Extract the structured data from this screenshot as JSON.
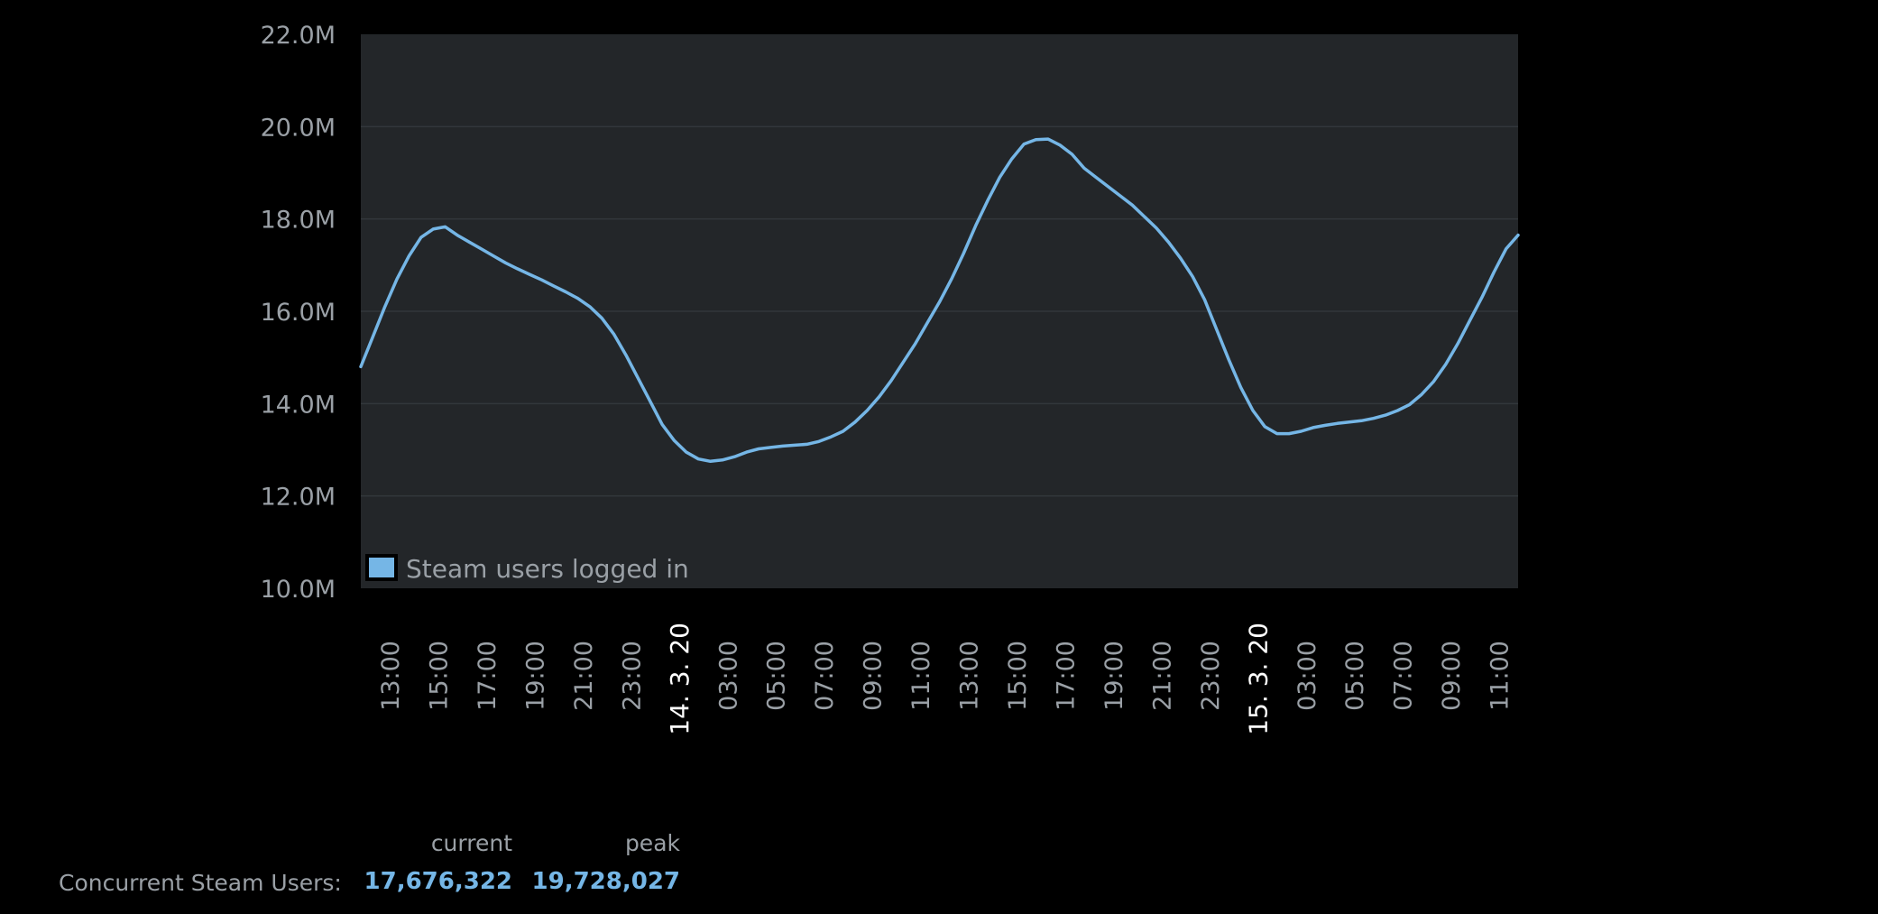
{
  "chart_data": {
    "type": "line",
    "title": "",
    "xlabel": "",
    "ylabel": "",
    "ylim": [
      10000000,
      22000000
    ],
    "y_ticks": [
      {
        "value": 22000000,
        "label": "22.0M"
      },
      {
        "value": 20000000,
        "label": "20.0M"
      },
      {
        "value": 18000000,
        "label": "18.0M"
      },
      {
        "value": 16000000,
        "label": "16.0M"
      },
      {
        "value": 14000000,
        "label": "14.0M"
      },
      {
        "value": 12000000,
        "label": "12.0M"
      },
      {
        "value": 10000000,
        "label": "10.0M"
      }
    ],
    "x_ticks": [
      {
        "hour": 13,
        "label": "13:00",
        "kind": "time"
      },
      {
        "hour": 15,
        "label": "15:00",
        "kind": "time"
      },
      {
        "hour": 17,
        "label": "17:00",
        "kind": "time"
      },
      {
        "hour": 19,
        "label": "19:00",
        "kind": "time"
      },
      {
        "hour": 21,
        "label": "21:00",
        "kind": "time"
      },
      {
        "hour": 23,
        "label": "23:00",
        "kind": "time"
      },
      {
        "hour": 25,
        "label": "14. 3. 20",
        "kind": "date"
      },
      {
        "hour": 27,
        "label": "03:00",
        "kind": "time"
      },
      {
        "hour": 29,
        "label": "05:00",
        "kind": "time"
      },
      {
        "hour": 31,
        "label": "07:00",
        "kind": "time"
      },
      {
        "hour": 33,
        "label": "09:00",
        "kind": "time"
      },
      {
        "hour": 35,
        "label": "11:00",
        "kind": "time"
      },
      {
        "hour": 37,
        "label": "13:00",
        "kind": "time"
      },
      {
        "hour": 39,
        "label": "15:00",
        "kind": "time"
      },
      {
        "hour": 41,
        "label": "17:00",
        "kind": "time"
      },
      {
        "hour": 43,
        "label": "19:00",
        "kind": "time"
      },
      {
        "hour": 45,
        "label": "21:00",
        "kind": "time"
      },
      {
        "hour": 47,
        "label": "23:00",
        "kind": "time"
      },
      {
        "hour": 49,
        "label": "15. 3. 20",
        "kind": "date"
      },
      {
        "hour": 51,
        "label": "03:00",
        "kind": "time"
      },
      {
        "hour": 53,
        "label": "05:00",
        "kind": "time"
      },
      {
        "hour": 55,
        "label": "07:00",
        "kind": "time"
      },
      {
        "hour": 57,
        "label": "09:00",
        "kind": "time"
      },
      {
        "hour": 59,
        "label": "11:00",
        "kind": "time"
      }
    ],
    "x_range": [
      11.8,
      59.8
    ],
    "grid": true,
    "legend_position": "bottom-left",
    "series": [
      {
        "name": "Steam users logged in",
        "color": "#75b6e6",
        "points": [
          [
            11.8,
            14.8
          ],
          [
            12.3,
            15.45
          ],
          [
            12.8,
            16.1
          ],
          [
            13.3,
            16.7
          ],
          [
            13.8,
            17.2
          ],
          [
            14.3,
            17.6
          ],
          [
            14.8,
            17.78
          ],
          [
            15.3,
            17.83
          ],
          [
            15.8,
            17.65
          ],
          [
            16.3,
            17.5
          ],
          [
            16.8,
            17.35
          ],
          [
            17.3,
            17.2
          ],
          [
            17.8,
            17.05
          ],
          [
            18.3,
            16.92
          ],
          [
            18.8,
            16.8
          ],
          [
            19.3,
            16.68
          ],
          [
            19.8,
            16.55
          ],
          [
            20.3,
            16.42
          ],
          [
            20.8,
            16.28
          ],
          [
            21.3,
            16.1
          ],
          [
            21.8,
            15.85
          ],
          [
            22.3,
            15.5
          ],
          [
            22.8,
            15.05
          ],
          [
            23.3,
            14.55
          ],
          [
            23.8,
            14.05
          ],
          [
            24.3,
            13.55
          ],
          [
            24.8,
            13.2
          ],
          [
            25.3,
            12.95
          ],
          [
            25.8,
            12.8
          ],
          [
            26.3,
            12.75
          ],
          [
            26.8,
            12.78
          ],
          [
            27.3,
            12.85
          ],
          [
            27.8,
            12.95
          ],
          [
            28.3,
            13.02
          ],
          [
            28.8,
            13.05
          ],
          [
            29.3,
            13.08
          ],
          [
            29.8,
            13.1
          ],
          [
            30.3,
            13.12
          ],
          [
            30.8,
            13.18
          ],
          [
            31.3,
            13.28
          ],
          [
            31.8,
            13.4
          ],
          [
            32.3,
            13.6
          ],
          [
            32.8,
            13.85
          ],
          [
            33.3,
            14.15
          ],
          [
            33.8,
            14.5
          ],
          [
            34.3,
            14.9
          ],
          [
            34.8,
            15.3
          ],
          [
            35.3,
            15.75
          ],
          [
            35.8,
            16.2
          ],
          [
            36.3,
            16.7
          ],
          [
            36.8,
            17.25
          ],
          [
            37.3,
            17.85
          ],
          [
            37.8,
            18.4
          ],
          [
            38.3,
            18.9
          ],
          [
            38.8,
            19.3
          ],
          [
            39.3,
            19.62
          ],
          [
            39.8,
            19.72
          ],
          [
            40.3,
            19.73
          ],
          [
            40.8,
            19.6
          ],
          [
            41.3,
            19.4
          ],
          [
            41.8,
            19.1
          ],
          [
            42.3,
            18.9
          ],
          [
            42.8,
            18.7
          ],
          [
            43.3,
            18.5
          ],
          [
            43.8,
            18.3
          ],
          [
            44.3,
            18.05
          ],
          [
            44.8,
            17.8
          ],
          [
            45.3,
            17.5
          ],
          [
            45.8,
            17.15
          ],
          [
            46.3,
            16.75
          ],
          [
            46.8,
            16.25
          ],
          [
            47.3,
            15.6
          ],
          [
            47.8,
            14.95
          ],
          [
            48.3,
            14.35
          ],
          [
            48.8,
            13.85
          ],
          [
            49.3,
            13.5
          ],
          [
            49.8,
            13.35
          ],
          [
            50.3,
            13.35
          ],
          [
            50.8,
            13.4
          ],
          [
            51.3,
            13.48
          ],
          [
            51.8,
            13.53
          ],
          [
            52.3,
            13.57
          ],
          [
            52.8,
            13.6
          ],
          [
            53.3,
            13.63
          ],
          [
            53.8,
            13.68
          ],
          [
            54.3,
            13.75
          ],
          [
            54.8,
            13.85
          ],
          [
            55.3,
            13.98
          ],
          [
            55.8,
            14.2
          ],
          [
            56.3,
            14.48
          ],
          [
            56.8,
            14.85
          ],
          [
            57.3,
            15.3
          ],
          [
            57.8,
            15.8
          ],
          [
            58.3,
            16.3
          ],
          [
            58.8,
            16.85
          ],
          [
            59.3,
            17.35
          ],
          [
            59.8,
            17.65
          ]
        ]
      }
    ]
  },
  "stats": {
    "label": "Concurrent Steam Users:",
    "current_header": "current",
    "peak_header": "peak",
    "current_value": "17,676,322",
    "peak_value": "19,728,027"
  },
  "colors": {
    "background": "#000000",
    "plot_background": "#232629",
    "grid": "#33373b",
    "line": "#75b6e6",
    "text": "#9aa0a6",
    "date_text": "#ffffff"
  }
}
